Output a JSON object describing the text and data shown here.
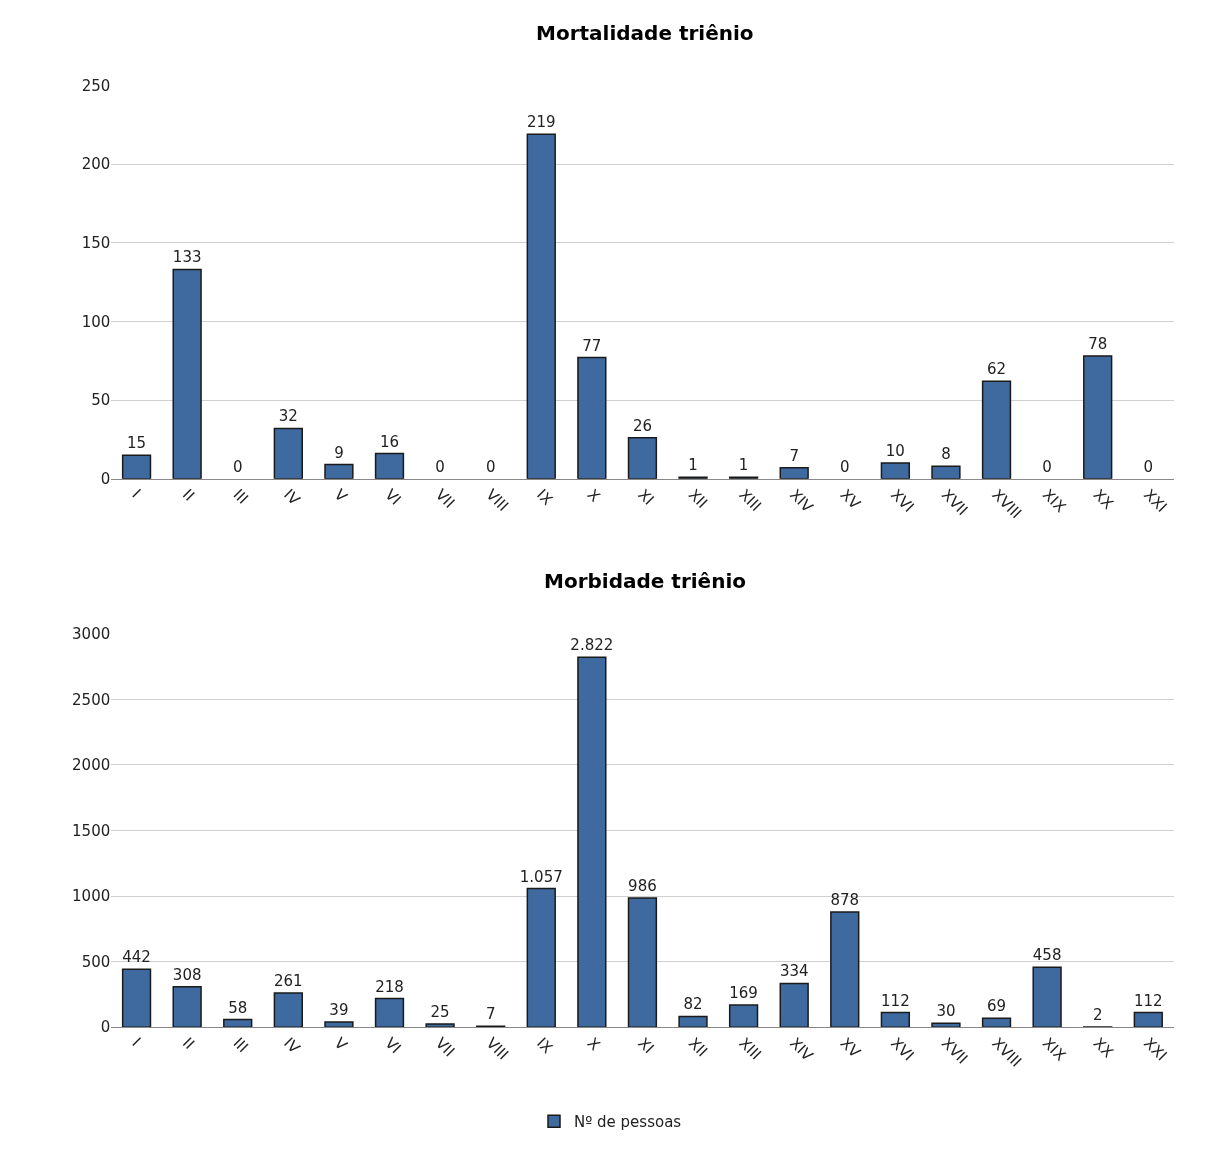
{
  "chart_data": [
    {
      "type": "bar",
      "title": "Mortalidade triênio",
      "categories": [
        "I",
        "II",
        "III",
        "IV",
        "V",
        "VI",
        "VII",
        "VIII",
        "IX",
        "X",
        "XI",
        "XII",
        "XIII",
        "XIV",
        "XV",
        "XVI",
        "XVII",
        "XVIII",
        "XIX",
        "XX",
        "XXI"
      ],
      "series": [
        {
          "color": "#3f6aa0",
          "values": [
            15,
            133,
            0,
            32,
            9,
            16,
            0,
            0,
            219,
            77,
            26,
            1,
            1,
            7,
            0,
            10,
            8,
            62,
            0,
            78,
            0
          ]
        }
      ],
      "ylim": [
        0,
        250
      ],
      "yticks": [
        0,
        50,
        100,
        150,
        200,
        250
      ],
      "grid": "y",
      "data_labels": true,
      "legend": false
    },
    {
      "type": "bar",
      "title": "Morbidade triênio",
      "categories": [
        "I",
        "II",
        "III",
        "IV",
        "V",
        "VI",
        "VII",
        "VIII",
        "IX",
        "X",
        "XI",
        "XII",
        "XIII",
        "XIV",
        "XV",
        "XVI",
        "XVII",
        "XVIII",
        "XIX",
        "XX",
        "XXI"
      ],
      "series": [
        {
          "name": "Nº de pessoas",
          "color": "#3f6aa0",
          "values": [
            442,
            308,
            58,
            261,
            39,
            218,
            25,
            7,
            1057,
            2822,
            986,
            82,
            169,
            334,
            878,
            112,
            30,
            69,
            458,
            2,
            112
          ],
          "value_labels": [
            "442",
            "308",
            "58",
            "261",
            "39",
            "218",
            "25",
            "7",
            "1.057",
            "2.822",
            "986",
            "82",
            "169",
            "334",
            "878",
            "112",
            "30",
            "69",
            "458",
            "2",
            "112"
          ]
        }
      ],
      "ylim": [
        0,
        3000
      ],
      "yticks": [
        0,
        500,
        1000,
        1500,
        2000,
        2500,
        3000
      ],
      "grid": "y",
      "legend": "bottom"
    }
  ]
}
